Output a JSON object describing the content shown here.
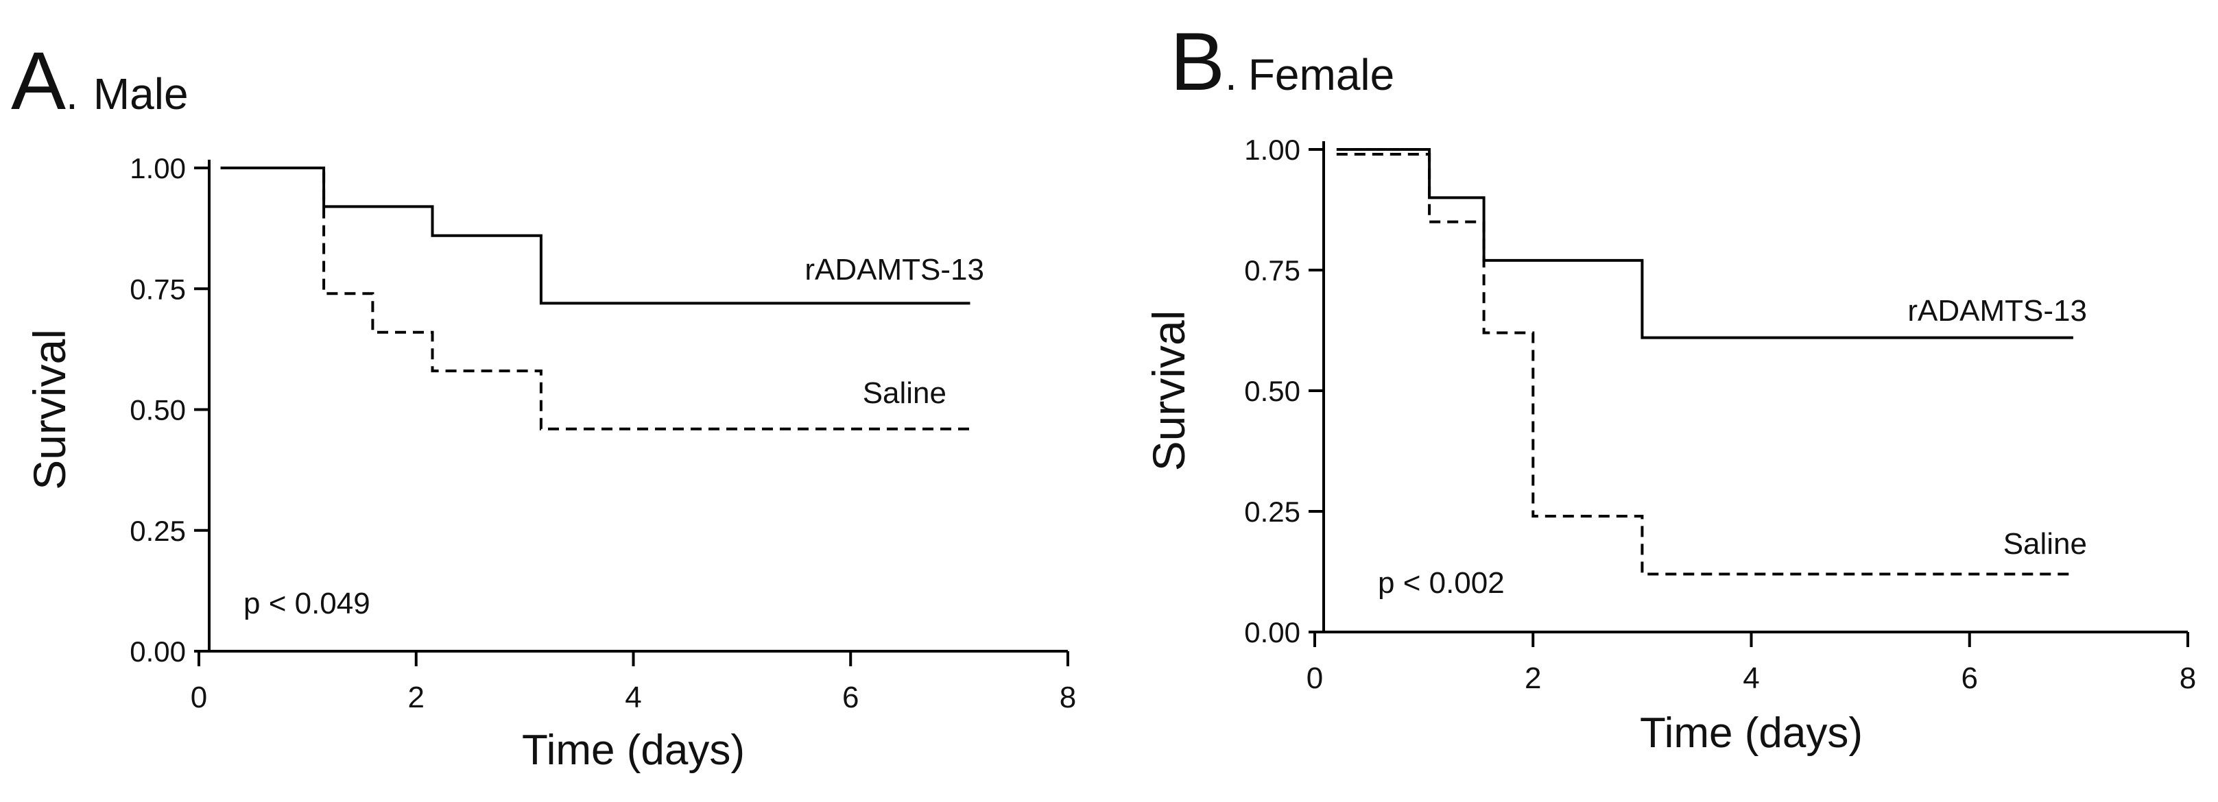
{
  "panels": [
    {
      "letter": "A",
      "dot": ".",
      "title": "Male"
    },
    {
      "letter": "B",
      "dot": ".",
      "title": "Female"
    }
  ],
  "chart_data": [
    {
      "type": "line",
      "title": "A. Male",
      "xlabel": "Time (days)",
      "ylabel": "Survival",
      "xlim": [
        0,
        8
      ],
      "ylim": [
        0,
        1
      ],
      "xticks": [
        "0",
        "2",
        "4",
        "6",
        "8"
      ],
      "yticks": [
        "0.00",
        "0.25",
        "0.50",
        "0.75",
        "1.00"
      ],
      "annotation": "p < 0.049",
      "series": [
        {
          "name": "rADAMTS-13",
          "style": "solid",
          "x": [
            0.2,
            1.15,
            1.15,
            2.15,
            2.15,
            3.15,
            3.15,
            7.1
          ],
          "y": [
            1.0,
            1.0,
            0.92,
            0.92,
            0.86,
            0.86,
            0.72,
            0.72
          ]
        },
        {
          "name": "Saline",
          "style": "dashed",
          "x": [
            0.2,
            1.15,
            1.15,
            1.6,
            1.6,
            2.15,
            2.15,
            3.15,
            3.15,
            7.1
          ],
          "y": [
            1.0,
            1.0,
            0.74,
            0.74,
            0.66,
            0.66,
            0.58,
            0.58,
            0.46,
            0.46
          ]
        }
      ]
    },
    {
      "type": "line",
      "title": "B. Female",
      "xlabel": "Time (days)",
      "ylabel": "Survival",
      "xlim": [
        0,
        8
      ],
      "ylim": [
        0,
        1
      ],
      "xticks": [
        "0",
        "2",
        "4",
        "6",
        "8"
      ],
      "yticks": [
        "0.00",
        "0.25",
        "0.50",
        "0.75",
        "1.00"
      ],
      "annotation": "p < 0.002",
      "series": [
        {
          "name": "rADAMTS-13",
          "style": "solid",
          "x": [
            0.2,
            1.05,
            1.05,
            1.55,
            1.55,
            3.0,
            3.0,
            6.95
          ],
          "y": [
            1.0,
            1.0,
            0.9,
            0.9,
            0.77,
            0.77,
            0.61,
            0.61
          ]
        },
        {
          "name": "Saline",
          "style": "dashed",
          "x": [
            0.2,
            1.05,
            1.05,
            1.55,
            1.55,
            2.0,
            2.0,
            3.0,
            3.0,
            6.95
          ],
          "y": [
            0.99,
            0.99,
            0.85,
            0.85,
            0.62,
            0.62,
            0.24,
            0.24,
            0.12,
            0.12
          ]
        }
      ]
    }
  ]
}
